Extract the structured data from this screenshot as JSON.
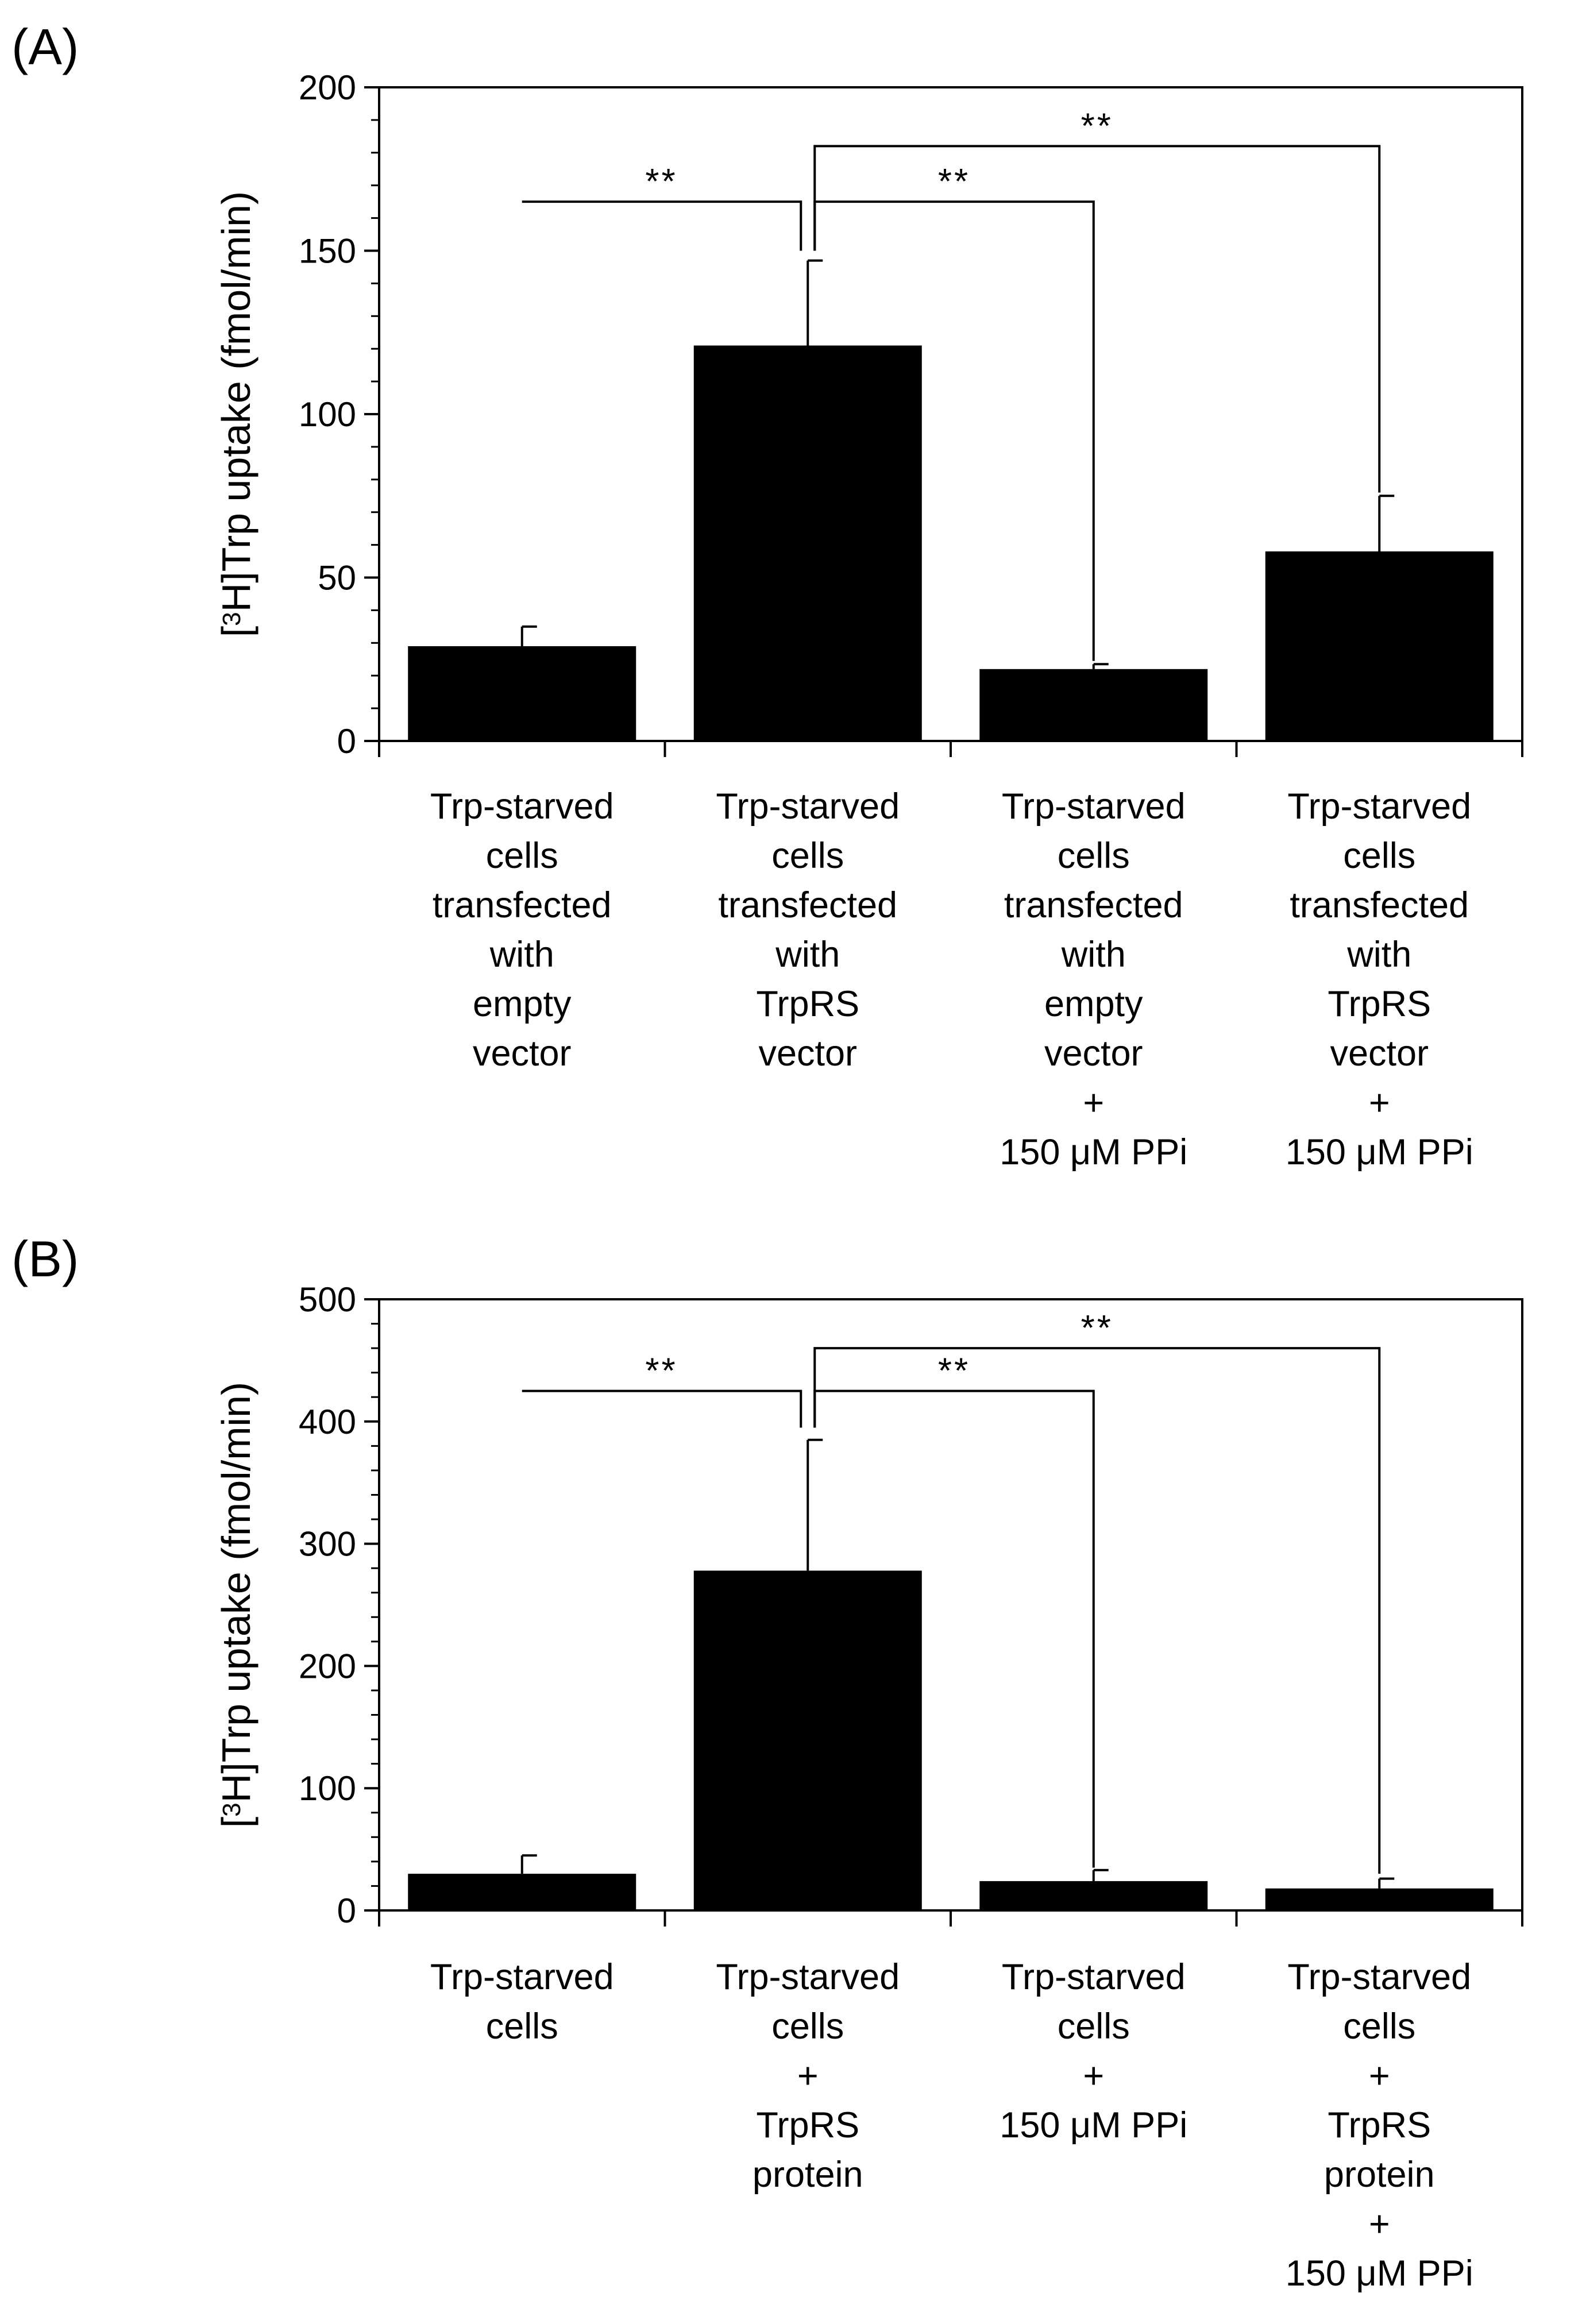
{
  "chart_data": [
    {
      "panel": "(A)",
      "type": "bar",
      "ylabel_parts": [
        "[",
        "3",
        "H]Trp uptake (fmol/min)"
      ],
      "ylim": [
        0,
        200
      ],
      "yticks": [
        0,
        50,
        100,
        150,
        200
      ],
      "minor_step": 10,
      "categories": [
        [
          "Trp-starved",
          "cells",
          "transfected",
          "with",
          "empty",
          "vector"
        ],
        [
          "Trp-starved",
          "cells",
          "transfected",
          "with",
          "TrpRS",
          "vector"
        ],
        [
          "Trp-starved",
          "cells",
          "transfected",
          "with",
          "empty",
          "vector",
          "+",
          "150 μM PPi"
        ],
        [
          "Trp-starved",
          "cells",
          "transfected",
          "with",
          "TrpRS",
          "vector",
          "+",
          "150 μM PPi"
        ]
      ],
      "values": [
        29,
        121,
        22,
        58
      ],
      "errors": [
        6,
        26,
        1.5,
        17
      ],
      "significance": [
        {
          "from": 0,
          "to": 1,
          "label": "**",
          "left_top": 165,
          "right_top": 150,
          "level": 165
        },
        {
          "from": 1,
          "to": 2,
          "label": "**",
          "left_top": 150,
          "right_top": 24.5,
          "level": 165
        },
        {
          "from": 1,
          "to": 3,
          "label": "**",
          "left_top": 150,
          "right_top": 76,
          "level": 182
        }
      ]
    },
    {
      "panel": "(B)",
      "type": "bar",
      "ylabel_parts": [
        "[",
        "3",
        "H]Trp uptake (fmol/min)"
      ],
      "ylim": [
        0,
        500
      ],
      "yticks": [
        0,
        100,
        200,
        300,
        400,
        500
      ],
      "minor_step": 20,
      "categories": [
        [
          "Trp-starved",
          "cells"
        ],
        [
          "Trp-starved",
          "cells",
          "+",
          "TrpRS",
          "protein"
        ],
        [
          "Trp-starved",
          "cells",
          "+",
          "150 μM PPi"
        ],
        [
          "Trp-starved",
          "cells",
          "+",
          "TrpRS",
          "protein",
          "+",
          "150 μM PPi"
        ]
      ],
      "values": [
        30,
        278,
        24,
        18
      ],
      "errors": [
        15,
        107,
        9,
        8
      ],
      "significance": [
        {
          "from": 0,
          "to": 1,
          "label": "**",
          "left_top": 425,
          "right_top": 395,
          "level": 425
        },
        {
          "from": 1,
          "to": 2,
          "label": "**",
          "left_top": 395,
          "right_top": 35,
          "level": 425
        },
        {
          "from": 1,
          "to": 3,
          "label": "**",
          "left_top": 395,
          "right_top": 30,
          "level": 460
        }
      ]
    }
  ]
}
